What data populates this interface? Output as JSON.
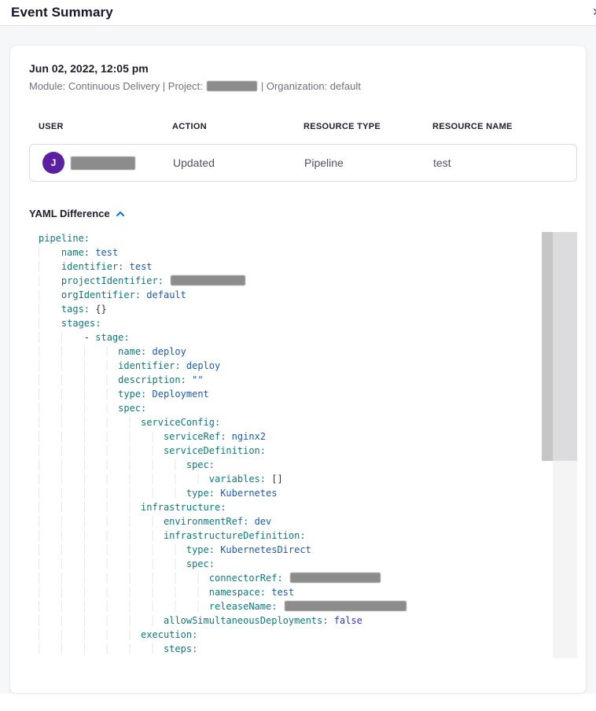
{
  "header": {
    "title": "Event Summary",
    "close_glyph": "✕"
  },
  "event": {
    "timestamp": "Jun 02, 2022, 12:05 pm",
    "context_left": "Module: Continuous Delivery | Project:",
    "context_right": "| Organization: default",
    "project_redacted": true
  },
  "table": {
    "columns": [
      "USER",
      "ACTION",
      "RESOURCE TYPE",
      "RESOURCE NAME"
    ],
    "row": {
      "avatar_initial": "J",
      "user_redacted": true,
      "action": "Updated",
      "resource_type": "Pipeline",
      "resource_name": "test"
    }
  },
  "yaml_section": {
    "label": "YAML Difference",
    "expanded": true
  },
  "yaml": {
    "lines": [
      "pipeline:",
      "    name: test",
      "    identifier: test",
      "    projectIdentifier: §95§",
      "    orgIdentifier: default",
      "    tags: {}",
      "    stages:",
      "        - stage:",
      "              name: deploy",
      "              identifier: deploy",
      "              description: \"\"",
      "              type: Deployment",
      "              spec:",
      "                  serviceConfig:",
      "                      serviceRef: nginx2",
      "                      serviceDefinition:",
      "                          spec:",
      "                              variables: []",
      "                          type: Kubernetes",
      "                  infrastructure:",
      "                      environmentRef: dev",
      "                      infrastructureDefinition:",
      "                          type: KubernetesDirect",
      "                          spec:",
      "                              connectorRef: §115§",
      "                              namespace: test",
      "                              releaseName: §155§",
      "                      allowSimultaneousDeployments: false",
      "                  execution:",
      "                      steps:"
    ]
  },
  "colors": {
    "accent": "#0278d5",
    "avatar": "#5b1fa2",
    "redact": "#8c8c8c",
    "key": "#0d7a7a",
    "val": "#1b5ab4",
    "kw": "#3333cc"
  }
}
